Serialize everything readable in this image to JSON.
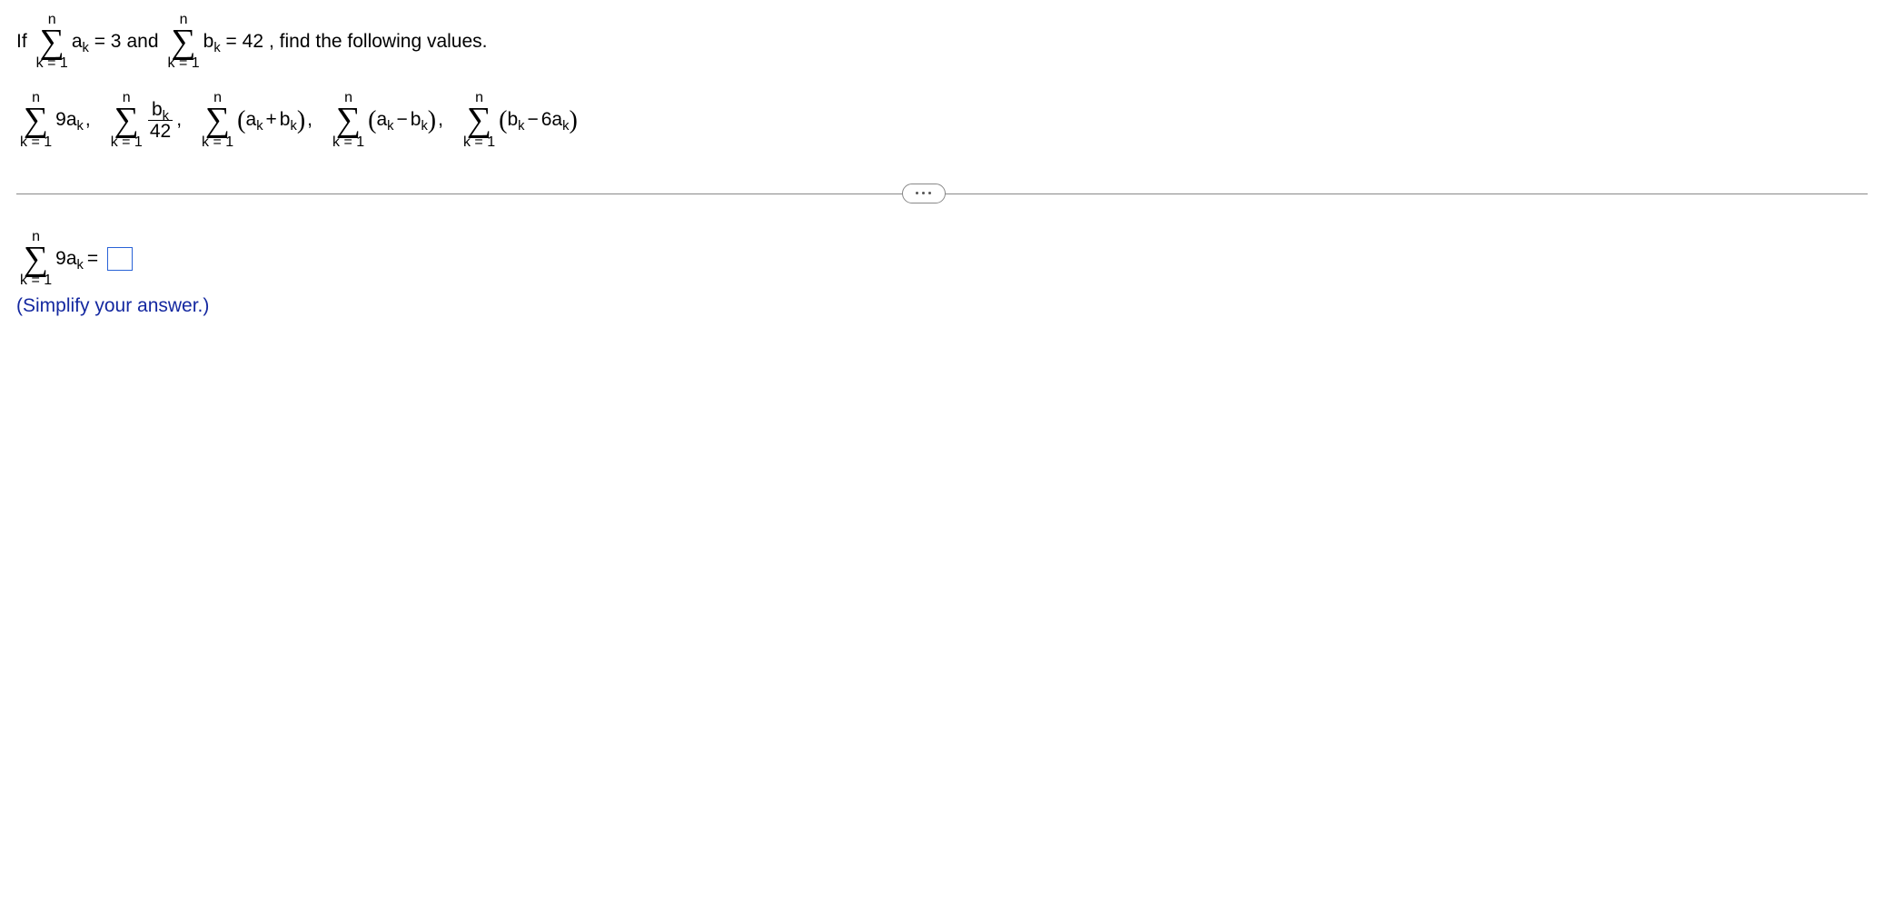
{
  "given": {
    "prefix": "If",
    "sum_a": {
      "upper": "n",
      "lower": "k = 1",
      "expr": "a",
      "sub": "k",
      "value": "3"
    },
    "connector": "and",
    "sum_b": {
      "upper": "n",
      "lower": "k = 1",
      "expr": "b",
      "sub": "k",
      "value": "42"
    },
    "suffix": ", find the following values."
  },
  "terms": [
    {
      "upper": "n",
      "lower": "k = 1",
      "body": "9a",
      "body_sub": "k",
      "type": "plain"
    },
    {
      "upper": "n",
      "lower": "k = 1",
      "num": "b",
      "num_sub": "k",
      "den": "42",
      "type": "frac"
    },
    {
      "upper": "n",
      "lower": "k = 1",
      "left": "a",
      "left_sub": "k",
      "op": "+",
      "right": "b",
      "right_sub": "k",
      "type": "paren"
    },
    {
      "upper": "n",
      "lower": "k = 1",
      "left": "a",
      "left_sub": "k",
      "op": "−",
      "right": "b",
      "right_sub": "k",
      "type": "paren"
    },
    {
      "upper": "n",
      "lower": "k = 1",
      "left": "b",
      "left_sub": "k",
      "op": "−",
      "right": "6a",
      "right_sub": "k",
      "type": "paren"
    }
  ],
  "question": {
    "upper": "n",
    "lower": "k = 1",
    "body": "9a",
    "body_sub": "k",
    "eq": "="
  },
  "hint": "(Simplify your answer.)",
  "answer_value": ""
}
